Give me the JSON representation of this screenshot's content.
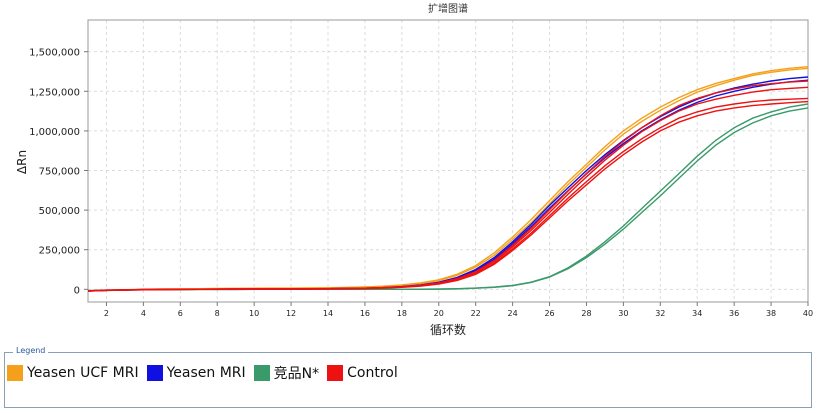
{
  "chart_data": {
    "type": "line",
    "title": "扩增图谱",
    "xlabel": "循环数",
    "ylabel": "ΔRn",
    "xlim": [
      1,
      40
    ],
    "ylim": [
      -80000,
      1700000
    ],
    "x_ticks": [
      2,
      4,
      6,
      8,
      10,
      12,
      14,
      16,
      18,
      20,
      22,
      24,
      26,
      28,
      30,
      32,
      34,
      36,
      38,
      40
    ],
    "y_ticks": [
      0,
      250000,
      500000,
      750000,
      1000000,
      1250000,
      1500000
    ],
    "y_tick_labels": [
      "0",
      "250,000",
      "500,000",
      "750,000",
      "1,000,000",
      "1,250,000",
      "1,500,000"
    ],
    "grid": true,
    "legend_title": "Legend",
    "legend_position": "bottom",
    "x": [
      1,
      2,
      3,
      4,
      5,
      6,
      7,
      8,
      9,
      10,
      11,
      12,
      13,
      14,
      15,
      16,
      17,
      18,
      19,
      20,
      21,
      22,
      23,
      24,
      25,
      26,
      27,
      28,
      29,
      30,
      31,
      32,
      33,
      34,
      35,
      36,
      37,
      38,
      39,
      40
    ],
    "series": [
      {
        "name": "Yeasen UCF MRI",
        "color": "#f5a01a",
        "values": [
          -10000,
          -5000,
          -3000,
          0,
          2000,
          3000,
          4000,
          5000,
          6000,
          7000,
          8000,
          8000,
          9000,
          10000,
          12000,
          15000,
          20000,
          28000,
          40000,
          60000,
          95000,
          150000,
          230000,
          330000,
          440000,
          560000,
          680000,
          790000,
          900000,
          1000000,
          1080000,
          1150000,
          1210000,
          1260000,
          1300000,
          1330000,
          1360000,
          1380000,
          1395000,
          1405000
        ]
      },
      {
        "name": "Yeasen UCF MRI",
        "color": "#f5a01a",
        "values": [
          -12000,
          -6000,
          -4000,
          -1000,
          1000,
          2000,
          3000,
          4000,
          5000,
          6000,
          7000,
          7000,
          8000,
          9000,
          11000,
          14000,
          18000,
          25000,
          36000,
          55000,
          88000,
          140000,
          215000,
          315000,
          420000,
          540000,
          660000,
          770000,
          880000,
          980000,
          1060000,
          1130000,
          1190000,
          1245000,
          1285000,
          1320000,
          1350000,
          1370000,
          1385000,
          1395000
        ]
      },
      {
        "name": "Yeasen MRI",
        "color": "#1010e0",
        "values": [
          -10000,
          -6000,
          -4000,
          -2000,
          -1000,
          0,
          1000,
          1000,
          2000,
          2000,
          2000,
          3000,
          3000,
          4000,
          5000,
          7000,
          11000,
          17000,
          27000,
          45000,
          75000,
          125000,
          200000,
          300000,
          410000,
          530000,
          640000,
          750000,
          850000,
          940000,
          1020000,
          1090000,
          1150000,
          1200000,
          1240000,
          1270000,
          1295000,
          1315000,
          1330000,
          1340000
        ]
      },
      {
        "name": "Yeasen MRI",
        "color": "#1010e0",
        "values": [
          -11000,
          -7000,
          -5000,
          -3000,
          -2000,
          -1000,
          0,
          0,
          1000,
          1000,
          1000,
          2000,
          2000,
          3000,
          4000,
          6000,
          10000,
          15000,
          24000,
          41000,
          70000,
          118000,
          190000,
          288000,
          395000,
          512000,
          622000,
          730000,
          830000,
          920000,
          1000000,
          1070000,
          1130000,
          1180000,
          1220000,
          1250000,
          1275000,
          1295000,
          1310000,
          1320000
        ]
      },
      {
        "name": "竞品N*",
        "color": "#3a9a6a",
        "values": [
          -8000,
          -5000,
          -3000,
          -2000,
          -1000,
          -1000,
          0,
          0,
          0,
          0,
          0,
          0,
          0,
          0,
          0,
          0,
          0,
          0,
          1000,
          2000,
          4000,
          8000,
          14000,
          25000,
          45000,
          80000,
          135000,
          210000,
          300000,
          400000,
          510000,
          620000,
          730000,
          840000,
          940000,
          1020000,
          1080000,
          1120000,
          1150000,
          1170000
        ]
      },
      {
        "name": "竞品N*",
        "color": "#3a9a6a",
        "values": [
          -9000,
          -6000,
          -4000,
          -3000,
          -2000,
          -2000,
          -1000,
          -1000,
          -1000,
          0,
          0,
          0,
          0,
          0,
          0,
          0,
          0,
          0,
          0,
          1000,
          3000,
          7000,
          13000,
          23000,
          43000,
          77000,
          130000,
          200000,
          285000,
          380000,
          485000,
          590000,
          700000,
          810000,
          910000,
          990000,
          1050000,
          1095000,
          1125000,
          1145000
        ]
      },
      {
        "name": "Control",
        "color": "#ee1111",
        "values": [
          -10000,
          -6000,
          -4000,
          -2000,
          -1000,
          0,
          0,
          1000,
          1000,
          1000,
          2000,
          2000,
          2000,
          3000,
          4000,
          6000,
          9000,
          14000,
          22000,
          36000,
          60000,
          100000,
          165000,
          255000,
          355000,
          465000,
          575000,
          680000,
          780000,
          870000,
          950000,
          1020000,
          1080000,
          1120000,
          1150000,
          1170000,
          1185000,
          1195000,
          1200000,
          1205000
        ]
      },
      {
        "name": "Control",
        "color": "#ee1111",
        "values": [
          -11000,
          -7000,
          -5000,
          -3000,
          -2000,
          -1000,
          0,
          0,
          1000,
          1000,
          1000,
          1000,
          2000,
          2000,
          3000,
          5000,
          8000,
          13000,
          20000,
          33000,
          56000,
          95000,
          158000,
          245000,
          343000,
          450000,
          558000,
          660000,
          760000,
          850000,
          930000,
          1000000,
          1055000,
          1095000,
          1125000,
          1145000,
          1160000,
          1170000,
          1178000,
          1185000
        ]
      },
      {
        "name": "Control",
        "color": "#ee1111",
        "values": [
          -9000,
          -5000,
          -3000,
          -1000,
          0,
          1000,
          1000,
          2000,
          2000,
          2000,
          3000,
          3000,
          3000,
          4000,
          5000,
          7000,
          10000,
          15000,
          24000,
          39000,
          65000,
          108000,
          175000,
          268000,
          372000,
          485000,
          600000,
          710000,
          815000,
          910000,
          995000,
          1065000,
          1125000,
          1170000,
          1200000,
          1225000,
          1245000,
          1260000,
          1268000,
          1275000
        ]
      },
      {
        "name": "Control",
        "color": "#ee1111",
        "values": [
          -10000,
          -6000,
          -4000,
          -2000,
          -1000,
          0,
          1000,
          1000,
          2000,
          2000,
          2000,
          3000,
          3000,
          4000,
          5000,
          7000,
          11000,
          16000,
          25000,
          41000,
          68000,
          112000,
          182000,
          278000,
          386000,
          502000,
          620000,
          732000,
          838000,
          935000,
          1020000,
          1095000,
          1160000,
          1205000,
          1240000,
          1265000,
          1285000,
          1298000,
          1308000,
          1315000
        ]
      }
    ],
    "legend": [
      {
        "name": "Yeasen UCF MRI",
        "color": "#f5a01a"
      },
      {
        "name": "Yeasen MRI",
        "color": "#1010e0"
      },
      {
        "name": "竞品N*",
        "color": "#3a9a6a"
      },
      {
        "name": "Control",
        "color": "#ee1111"
      }
    ]
  }
}
